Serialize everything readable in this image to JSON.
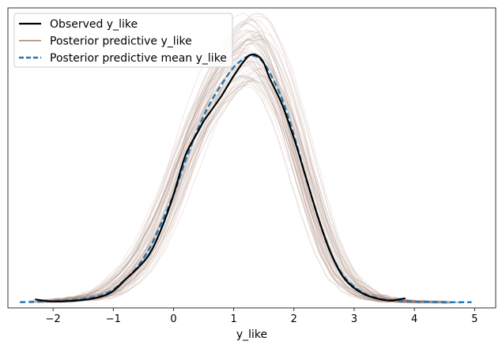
{
  "chart_data": {
    "type": "line",
    "title": "",
    "xlabel": "y_like",
    "ylabel": "",
    "xlim": [
      -2.75,
      5.35
    ],
    "ylim": [
      -0.02,
      1.04
    ],
    "x_ticks": [
      -2,
      -1,
      0,
      1,
      2,
      3,
      4,
      5
    ],
    "x_tick_labels": [
      "−2",
      "−1",
      "0",
      "1",
      "2",
      "3",
      "4",
      "5"
    ],
    "y_ticks_visible": false,
    "grid": false,
    "legend_position": "top-left",
    "legend": [
      "Observed y_like",
      "Posterior predictive y_like",
      "Posterior predictive mean y_like"
    ],
    "colors": {
      "observed": "#000000",
      "posterior_predictive": "#a1786b",
      "posterior_mean": "#1f77b4"
    },
    "posterior_draw_count": 60,
    "series": [
      {
        "name": "Observed y_like",
        "style": "solid",
        "x": [
          -2.3,
          -2.0,
          -1.5,
          -1.2,
          -1.0,
          -0.8,
          -0.6,
          -0.4,
          -0.2,
          0.0,
          0.2,
          0.4,
          0.5,
          0.6,
          0.8,
          1.0,
          1.2,
          1.3,
          1.4,
          1.5,
          1.6,
          1.8,
          2.0,
          2.2,
          2.4,
          2.6,
          2.8,
          3.0,
          3.2,
          3.4,
          3.6,
          3.85
        ],
        "y": [
          0.01,
          0.003,
          0.008,
          0.02,
          0.04,
          0.08,
          0.12,
          0.17,
          0.26,
          0.38,
          0.52,
          0.6,
          0.64,
          0.67,
          0.73,
          0.8,
          0.86,
          0.875,
          0.87,
          0.845,
          0.79,
          0.7,
          0.58,
          0.44,
          0.3,
          0.18,
          0.095,
          0.05,
          0.025,
          0.012,
          0.006,
          0.014
        ]
      },
      {
        "name": "Posterior predictive mean y_like",
        "style": "dashed",
        "x": [
          -2.55,
          -2.0,
          -1.5,
          -1.2,
          -1.0,
          -0.8,
          -0.6,
          -0.4,
          -0.2,
          0.0,
          0.2,
          0.4,
          0.6,
          0.8,
          1.0,
          1.2,
          1.3,
          1.4,
          1.5,
          1.6,
          1.8,
          2.0,
          2.2,
          2.4,
          2.6,
          2.8,
          3.0,
          3.2,
          3.4,
          3.6,
          3.8,
          4.0,
          4.4,
          4.95
        ],
        "y": [
          0.0,
          0.004,
          0.012,
          0.025,
          0.045,
          0.08,
          0.125,
          0.19,
          0.28,
          0.38,
          0.5,
          0.61,
          0.7,
          0.77,
          0.83,
          0.865,
          0.872,
          0.865,
          0.845,
          0.81,
          0.72,
          0.59,
          0.44,
          0.3,
          0.18,
          0.1,
          0.055,
          0.028,
          0.014,
          0.007,
          0.004,
          0.002,
          0.0005,
          0.0
        ]
      }
    ]
  }
}
